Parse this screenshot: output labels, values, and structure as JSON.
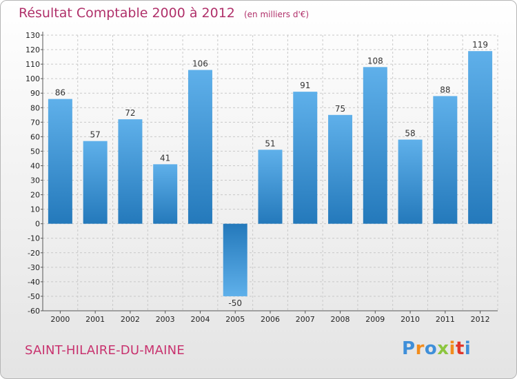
{
  "chart_data": {
    "type": "bar",
    "title": "Résultat Comptable 2000 à 2012",
    "subtitle": "(en milliers d'€)",
    "categories": [
      "2000",
      "2001",
      "2002",
      "2003",
      "2004",
      "2005",
      "2006",
      "2007",
      "2008",
      "2009",
      "2010",
      "2011",
      "2012"
    ],
    "values": [
      86,
      57,
      72,
      41,
      106,
      -50,
      51,
      91,
      75,
      108,
      58,
      88,
      119
    ],
    "ylim": [
      -60,
      130
    ],
    "ytick_step": 10,
    "grid": true,
    "xlabel": "",
    "ylabel": ""
  },
  "location": "SAINT-HILAIRE-DU-MAINE",
  "brand": {
    "letters": [
      "P",
      "r",
      "o",
      "x",
      "i",
      "t",
      "i"
    ],
    "colors": [
      "#3f8fd9",
      "#f28c1c",
      "#3f8fd9",
      "#8cc63f",
      "#f28c1c",
      "#e0362b",
      "#3f8fd9"
    ]
  }
}
